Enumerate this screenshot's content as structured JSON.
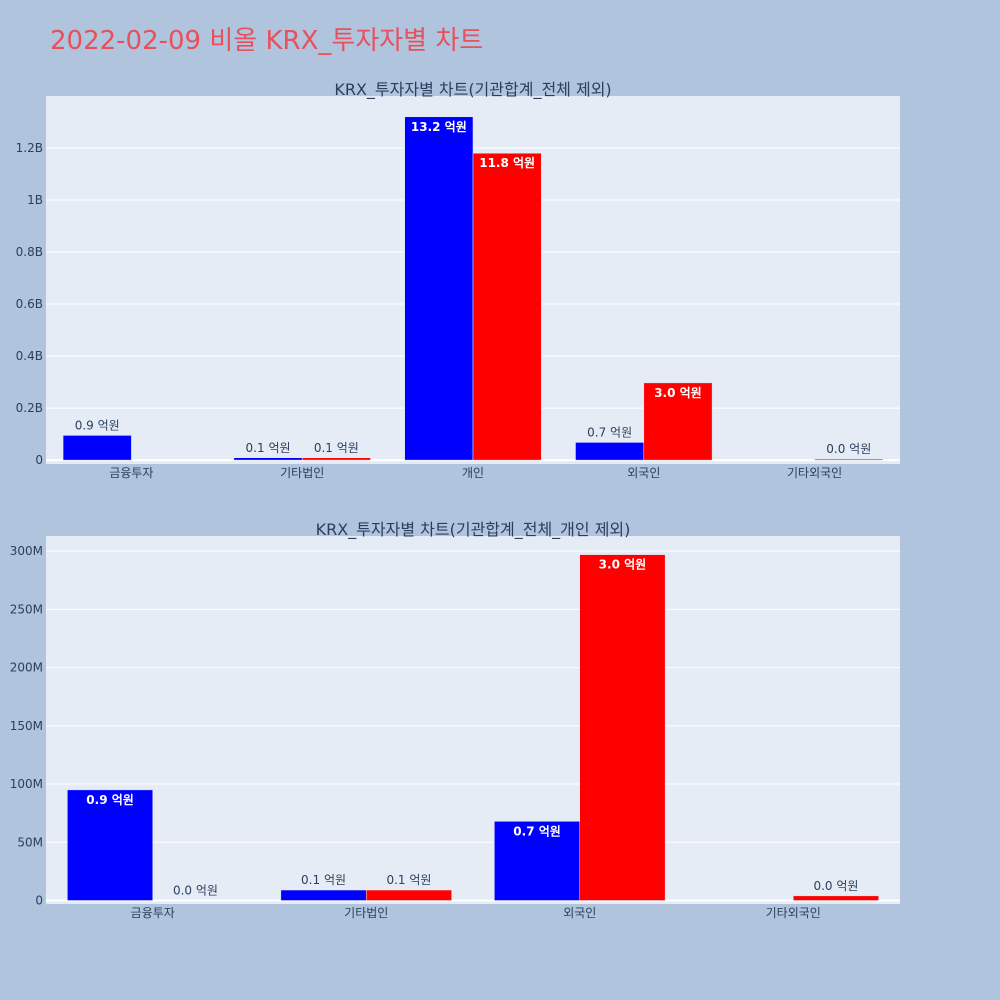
{
  "title": "2022-02-09 비올 KRX_투자자별 차트",
  "chart_data": [
    {
      "type": "bar",
      "title": "KRX_투자자별 차트(기관합계_전체 제외)",
      "categories": [
        "금융투자",
        "기타법인",
        "개인",
        "외국인",
        "기타외국인"
      ],
      "series": [
        {
          "color": "#0000ff",
          "values": [
            95000000,
            9000000,
            1320000000,
            68000000,
            0
          ],
          "labels": [
            "0.9 억원",
            "0.1 억원",
            "13.2 억원",
            "0.7 억원",
            ""
          ]
        },
        {
          "color": "#ff0000",
          "values": [
            0,
            9000000,
            1180000000,
            297000000,
            4000000
          ],
          "labels": [
            "",
            "0.1 억원",
            "11.8 억원",
            "3.0 억원",
            "0.0 억원"
          ]
        }
      ],
      "yticks": [
        0,
        200000000,
        400000000,
        600000000,
        800000000,
        1000000000,
        1200000000
      ],
      "ytick_labels": [
        "0",
        "0.2B",
        "0.4B",
        "0.6B",
        "0.8B",
        "1B",
        "1.2B"
      ],
      "ylim": [
        -15000000,
        1400000000
      ],
      "grid": true
    },
    {
      "type": "bar",
      "title": "KRX_투자자별 차트(기관합계_전체_개인 제외)",
      "categories": [
        "금융투자",
        "기타법인",
        "외국인",
        "기타외국인"
      ],
      "series": [
        {
          "color": "#0000ff",
          "values": [
            95000000,
            9000000,
            68000000,
            0
          ],
          "labels": [
            "0.9 억원",
            "0.1 억원",
            "0.7 억원",
            ""
          ]
        },
        {
          "color": "#ff0000",
          "values": [
            0,
            9000000,
            297000000,
            4000000
          ],
          "labels": [
            "0.0 억원",
            "0.1 억원",
            "3.0 억원",
            "0.0 억원"
          ]
        }
      ],
      "yticks": [
        0,
        50000000,
        100000000,
        150000000,
        200000000,
        250000000,
        300000000
      ],
      "ytick_labels": [
        "0",
        "50M",
        "100M",
        "150M",
        "200M",
        "250M",
        "300M"
      ],
      "ylim": [
        -3000000,
        313000000
      ],
      "grid": true
    }
  ]
}
